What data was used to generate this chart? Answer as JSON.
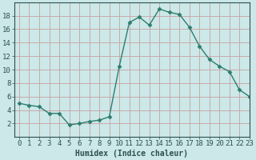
{
  "x": [
    0,
    1,
    2,
    3,
    4,
    5,
    6,
    7,
    8,
    9,
    10,
    11,
    12,
    13,
    14,
    15,
    16,
    17,
    18,
    19,
    20,
    21,
    22,
    23
  ],
  "y": [
    5.0,
    4.7,
    4.5,
    3.5,
    3.5,
    1.8,
    2.0,
    2.3,
    2.5,
    3.0,
    10.5,
    17.0,
    17.8,
    16.6,
    19.0,
    18.5,
    18.2,
    16.3,
    13.5,
    11.5,
    10.5,
    9.7,
    7.0,
    6.0
  ],
  "line_color": "#2e7d6e",
  "marker": "D",
  "marker_size": 2.5,
  "bg_color": "#cce8e8",
  "grid_color": "#c8a0a0",
  "tick_color": "#2e5050",
  "xlabel": "Humidex (Indice chaleur)",
  "ylim": [
    0,
    20
  ],
  "xlim": [
    -0.5,
    23
  ],
  "yticks": [
    2,
    4,
    6,
    8,
    10,
    12,
    14,
    16,
    18
  ],
  "xticks": [
    0,
    1,
    2,
    3,
    4,
    5,
    6,
    7,
    8,
    9,
    10,
    11,
    12,
    13,
    14,
    15,
    16,
    17,
    18,
    19,
    20,
    21,
    22,
    23
  ],
  "label_fontsize": 7,
  "tick_fontsize": 6.5
}
